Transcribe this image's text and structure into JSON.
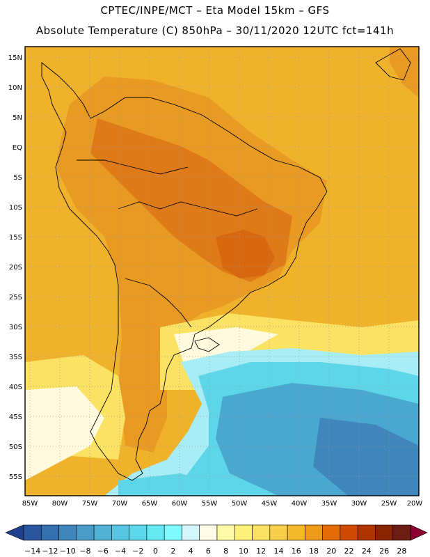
{
  "header": {
    "title_line1": "CPTEC/INPE/MCT –  Eta Model 15km – GFS",
    "title_line2": "Absolute Temperature (C) 850hPa – 30/11/2020 12UTC fct=141h"
  },
  "map": {
    "lat_labels": [
      "15N",
      "10N",
      "5N",
      "EQ",
      "5S",
      "10S",
      "15S",
      "20S",
      "25S",
      "30S",
      "35S",
      "40S",
      "45S",
      "50S",
      "55S"
    ],
    "lon_labels": [
      "85W",
      "80W",
      "75W",
      "70W",
      "65W",
      "60W",
      "55W",
      "50W",
      "45W",
      "40W",
      "35W",
      "30W",
      "25W",
      "20W"
    ]
  },
  "colorbar": {
    "labels": [
      "−14",
      "−12",
      "−10",
      "−8",
      "−6",
      "−4",
      "−2",
      "0",
      "2",
      "4",
      "6",
      "8",
      "10",
      "12",
      "14",
      "16",
      "18",
      "20",
      "22",
      "24",
      "26",
      "28"
    ],
    "colors": [
      "#1f3f8f",
      "#2a56a0",
      "#3470b0",
      "#3f86bc",
      "#4a9cc8",
      "#52b2d6",
      "#56c6e2",
      "#5cd8ec",
      "#66e8f2",
      "#7ffaff",
      "#d4f6ff",
      "#fffbe6",
      "#fffaa8",
      "#fff07a",
      "#fbe263",
      "#f8cf4a",
      "#f4b82b",
      "#ee9a1a",
      "#e56b06",
      "#cf4a00",
      "#b03400",
      "#8a2500",
      "#6e1d12",
      "#8b0030"
    ]
  },
  "palette": {
    "ocean_warm": "#f0b22a",
    "land_warm": "#e89a22",
    "hot": "#df7a18",
    "yellow": "#fbe263",
    "pale": "#fff9dd",
    "cyan": "#5ed6ea",
    "cyan_light": "#a8ecf6",
    "blue": "#4aa8d0"
  }
}
